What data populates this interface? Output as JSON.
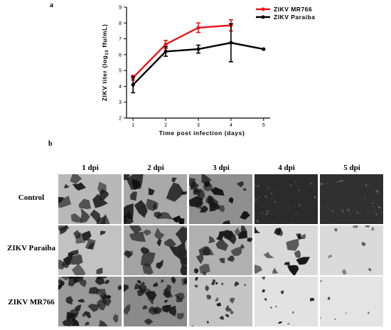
{
  "panel_a_label": "a",
  "panel_b_label": "b",
  "chart_data": {
    "type": "line",
    "title": "",
    "xlabel": "Time post infection (days)",
    "ylabel": "ZIKV titer (log",
    "ylabel_sub": "10",
    "ylabel_suffix": " ffu/mL)",
    "x": [
      1,
      2,
      3,
      4,
      5
    ],
    "xlim": [
      0.8,
      5.2
    ],
    "ylim": [
      2,
      9
    ],
    "yticks": [
      2,
      3,
      4,
      5,
      6,
      7,
      8,
      9
    ],
    "xticks": [
      1,
      2,
      3,
      4,
      5
    ],
    "legend_position": "top-right",
    "series": [
      {
        "name": "ZIKV MR766",
        "color": "#e8161b",
        "x": [
          1,
          2,
          3,
          4
        ],
        "values": [
          4.55,
          6.65,
          7.7,
          7.85
        ],
        "err": [
          0.15,
          0.25,
          0.3,
          0.35
        ]
      },
      {
        "name": "ZIKV Paraiba",
        "color": "#000000",
        "x": [
          1,
          2,
          3,
          4,
          5
        ],
        "values": [
          4.1,
          6.2,
          6.35,
          6.75,
          6.35
        ],
        "err": [
          0.5,
          0.3,
          0.25,
          1.2,
          0.0
        ]
      }
    ]
  },
  "micrographs": {
    "columns": [
      "1 dpi",
      "2 dpi",
      "3 dpi",
      "4 dpi",
      "5 dpi"
    ],
    "rows": [
      "Control",
      "ZIKV Paraiba",
      "ZIKV  MR766"
    ]
  }
}
